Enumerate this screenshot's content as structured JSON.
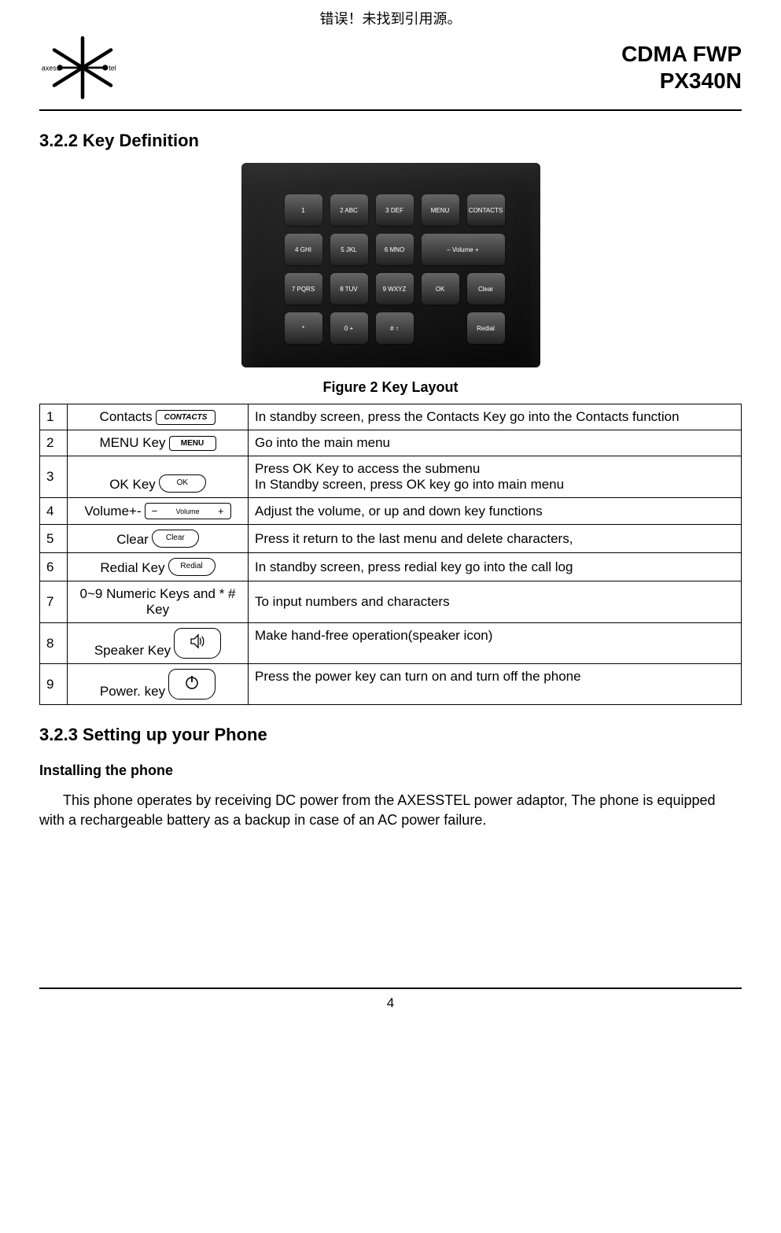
{
  "error_banner": "错误！未找到引用源。",
  "header": {
    "product_line1": "CDMA FWP",
    "product_line2": "PX340N"
  },
  "sections": {
    "key_def_heading": "3.2.2   Key Definition",
    "figure_caption": "Figure 2 Key Layout",
    "setup_heading": "3.2.3   Setting up your Phone",
    "install_subhead": "Installing the phone",
    "install_body": "This phone operates by receiving DC power from the AXESSTEL power adaptor, The phone is equipped with a rechargeable battery as a backup in case of an AC power failure."
  },
  "keypad": {
    "buttons": [
      "1",
      "2 ABC",
      "3 DEF",
      "MENU",
      "CONTACTS",
      "4 GHI",
      "5 JKL",
      "6 MNO",
      "– Volume +",
      "7 PQRS",
      "8 TUV",
      "9 WXYZ",
      "OK",
      "Clear",
      "*",
      "0 +",
      "# ↑",
      "",
      "Redial"
    ]
  },
  "key_table": {
    "rows": [
      {
        "n": "1",
        "label": "Contacts",
        "cap": "CONTACTS",
        "cap_style": "text",
        "desc": "In standby screen, press the Contacts Key go into the Contacts function",
        "justify": true
      },
      {
        "n": "2",
        "label": "MENU Key",
        "cap": "MENU",
        "cap_style": "text",
        "desc": "Go into the main menu"
      },
      {
        "n": "3",
        "label": "OK Key",
        "cap": "OK",
        "cap_style": "rounded",
        "desc": "Press OK Key to access the submenu\nIn Standby screen, press OK key  go into main menu"
      },
      {
        "n": "4",
        "label": "Volume+-",
        "cap": "Volume",
        "cap_style": "vol",
        "desc": "Adjust the volume, or up and down key functions"
      },
      {
        "n": "5",
        "label": "Clear",
        "cap": "Clear",
        "cap_style": "rounded",
        "desc": "Press it return to the last menu and delete characters,"
      },
      {
        "n": "6",
        "label": "Redial Key",
        "cap": "Redial",
        "cap_style": "rounded",
        "desc": "In standby screen, press redial key go into the call log"
      },
      {
        "n": "7",
        "label": "0~9 Numeric Keys and * # Key",
        "cap": "",
        "cap_style": "none",
        "desc": "To input numbers and characters"
      },
      {
        "n": "8",
        "label": "Speaker Key",
        "cap": "",
        "cap_style": "speaker",
        "desc": "Make hand-free operation(speaker icon)",
        "valign_top": true
      },
      {
        "n": "9",
        "label": "Power. key",
        "cap": "",
        "cap_style": "power",
        "desc": "Press the power key can turn on and turn off  the phone",
        "valign_top": true
      }
    ]
  },
  "footer": {
    "page_num": "4"
  },
  "colors": {
    "text": "#000000",
    "bg": "#ffffff",
    "border": "#000000"
  }
}
